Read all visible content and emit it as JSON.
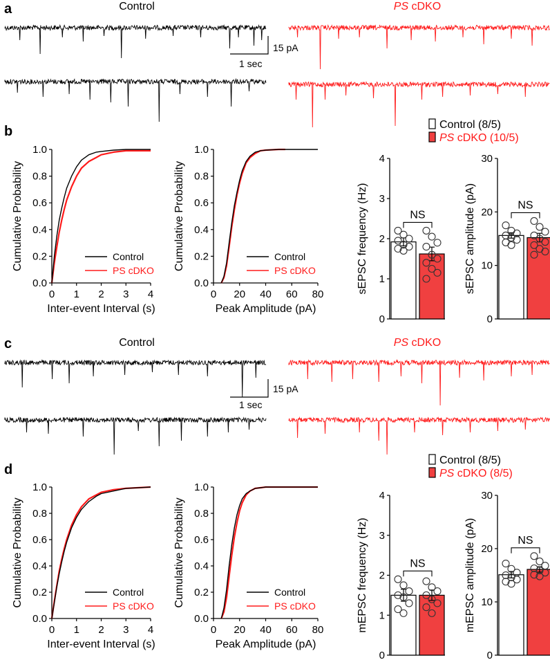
{
  "colors": {
    "control": "#000000",
    "cdko": "#ff1a1a",
    "bar_fill": "#f04040"
  },
  "panels": {
    "a": {
      "letter": "a",
      "control_label": "Control",
      "cdko_label_gene": "PS",
      "cdko_label_rest": " cDKO",
      "scale_current": "15 pA",
      "scale_time": "1 sec"
    },
    "b": {
      "letter": "b"
    },
    "c": {
      "letter": "c",
      "control_label": "Control",
      "cdko_label_gene": "PS",
      "cdko_label_rest": " cDKO",
      "scale_current": "15 pA",
      "scale_time": "1 sec"
    },
    "d": {
      "letter": "d"
    }
  },
  "bar_legends": {
    "b": {
      "control": "Control (8/5)",
      "cdko_gene": "PS",
      "cdko_rest": " cDKO (10/5)"
    },
    "d": {
      "control": "Control (8/5)",
      "cdko_gene": "PS",
      "cdko_rest": " cDKO (8/5)"
    }
  },
  "chart_data": [
    {
      "id": "b-iei",
      "type": "line",
      "xlabel": "Inter-event Interval (s)",
      "ylabel": "Cumulative Probability",
      "xlim": [
        0,
        4
      ],
      "ylim": [
        0,
        1
      ],
      "xticks": [
        "0",
        "1",
        "2",
        "3",
        "4"
      ],
      "yticks": [
        "0.0",
        "0.2",
        "0.4",
        "0.6",
        "0.8",
        "1.0"
      ],
      "legend": [
        "Control",
        "PS cDKO"
      ],
      "series": [
        {
          "name": "Control",
          "x": [
            0,
            0.1,
            0.2,
            0.3,
            0.4,
            0.5,
            0.6,
            0.8,
            1.0,
            1.2,
            1.5,
            1.8,
            2.0,
            2.5,
            3.0,
            4.0
          ],
          "y": [
            0,
            0.2,
            0.35,
            0.47,
            0.56,
            0.64,
            0.71,
            0.8,
            0.87,
            0.92,
            0.96,
            0.98,
            0.985,
            0.995,
            1.0,
            1.0
          ]
        },
        {
          "name": "PS cDKO",
          "x": [
            0,
            0.1,
            0.2,
            0.3,
            0.4,
            0.5,
            0.6,
            0.8,
            1.0,
            1.2,
            1.5,
            1.8,
            2.0,
            2.5,
            3.0,
            4.0
          ],
          "y": [
            0,
            0.15,
            0.27,
            0.38,
            0.47,
            0.55,
            0.62,
            0.72,
            0.8,
            0.86,
            0.91,
            0.94,
            0.96,
            0.98,
            0.99,
            0.99
          ]
        }
      ]
    },
    {
      "id": "b-amp",
      "type": "line",
      "xlabel": "Peak Amplitude (pA)",
      "ylabel": "Cumulative Probability",
      "xlim": [
        0,
        80
      ],
      "ylim": [
        0,
        1
      ],
      "xticks": [
        "0",
        "20",
        "40",
        "60",
        "80"
      ],
      "yticks": [
        "0.0",
        "0.2",
        "0.4",
        "0.6",
        "0.8",
        "1.0"
      ],
      "legend": [
        "Control",
        "PS cDKO"
      ],
      "series": [
        {
          "name": "Control",
          "x": [
            6,
            8,
            10,
            12,
            14,
            16,
            18,
            20,
            22,
            25,
            28,
            32,
            36,
            40,
            50,
            80
          ],
          "y": [
            0,
            0.05,
            0.15,
            0.3,
            0.45,
            0.58,
            0.68,
            0.77,
            0.84,
            0.91,
            0.95,
            0.98,
            0.99,
            0.995,
            1.0,
            1.0
          ]
        },
        {
          "name": "PS cDKO",
          "x": [
            6,
            8,
            10,
            12,
            14,
            16,
            18,
            20,
            22,
            25,
            28,
            32,
            36,
            40,
            50,
            55
          ],
          "y": [
            0,
            0.04,
            0.13,
            0.27,
            0.42,
            0.55,
            0.66,
            0.75,
            0.82,
            0.9,
            0.94,
            0.97,
            0.99,
            0.995,
            1.0,
            1.0
          ]
        }
      ]
    },
    {
      "id": "b-freq",
      "type": "bar",
      "ylabel": "sEPSC frequency (Hz)",
      "ylim": [
        0,
        4
      ],
      "yticks": [
        "0",
        "1",
        "2",
        "3",
        "4"
      ],
      "categories": [
        "Control",
        "PS cDKO"
      ],
      "values": [
        1.92,
        1.62
      ],
      "sem": [
        0.1,
        0.17
      ],
      "sig": "NS",
      "points": [
        [
          2.2,
          2.1,
          2.0,
          1.95,
          1.85,
          1.8,
          1.75,
          1.7
        ],
        [
          2.2,
          2.05,
          1.9,
          1.8,
          1.6,
          1.5,
          1.4,
          1.25,
          1.15,
          1.0
        ]
      ]
    },
    {
      "id": "b-ampbar",
      "type": "bar",
      "ylabel": "sEPSC amplitude (pA)",
      "ylim": [
        0,
        30
      ],
      "yticks": [
        "0",
        "10",
        "20",
        "30"
      ],
      "categories": [
        "Control",
        "PS cDKO"
      ],
      "values": [
        15.6,
        15.2
      ],
      "sem": [
        0.5,
        0.8
      ],
      "sig": "NS",
      "points": [
        [
          17.5,
          16.5,
          16.0,
          15.6,
          15.2,
          14.8,
          14.3,
          13.8
        ],
        [
          18.3,
          17.2,
          16.3,
          15.6,
          15.0,
          14.4,
          13.8,
          13.1,
          12.6,
          12.0
        ]
      ]
    },
    {
      "id": "d-iei",
      "type": "line",
      "xlabel": "Inter-event Interval (s)",
      "ylabel": "Cumulative Probability",
      "xlim": [
        0,
        4
      ],
      "ylim": [
        0,
        1
      ],
      "xticks": [
        "0",
        "1",
        "2",
        "3",
        "4"
      ],
      "yticks": [
        "0.0",
        "0.2",
        "0.4",
        "0.6",
        "0.8",
        "1.0"
      ],
      "legend": [
        "Control",
        "PS cDKO"
      ],
      "series": [
        {
          "name": "Control",
          "x": [
            0,
            0.1,
            0.2,
            0.3,
            0.4,
            0.5,
            0.6,
            0.8,
            1.0,
            1.2,
            1.5,
            1.8,
            2.0,
            2.5,
            3.0,
            4.0
          ],
          "y": [
            0,
            0.12,
            0.24,
            0.34,
            0.43,
            0.51,
            0.58,
            0.69,
            0.77,
            0.83,
            0.89,
            0.93,
            0.95,
            0.97,
            0.99,
            1.0
          ]
        },
        {
          "name": "PS cDKO",
          "x": [
            0,
            0.1,
            0.2,
            0.3,
            0.4,
            0.5,
            0.6,
            0.8,
            1.0,
            1.2,
            1.5,
            1.8,
            2.0,
            2.5,
            3.0,
            4.0
          ],
          "y": [
            0,
            0.13,
            0.25,
            0.36,
            0.45,
            0.53,
            0.6,
            0.71,
            0.79,
            0.85,
            0.91,
            0.94,
            0.96,
            0.98,
            0.99,
            1.0
          ]
        }
      ]
    },
    {
      "id": "d-amp",
      "type": "line",
      "xlabel": "Peak Amplitude (pA)",
      "ylabel": "Cumulative Probability",
      "xlim": [
        0,
        80
      ],
      "ylim": [
        0,
        1
      ],
      "xticks": [
        "0",
        "20",
        "40",
        "60",
        "80"
      ],
      "yticks": [
        "0.0",
        "0.2",
        "0.4",
        "0.6",
        "0.8",
        "1.0"
      ],
      "legend": [
        "Control",
        "PS cDKO"
      ],
      "series": [
        {
          "name": "Control",
          "x": [
            6,
            8,
            10,
            12,
            14,
            16,
            18,
            20,
            22,
            25,
            28,
            32,
            36,
            40,
            50,
            80
          ],
          "y": [
            0,
            0.08,
            0.22,
            0.4,
            0.56,
            0.69,
            0.79,
            0.86,
            0.91,
            0.95,
            0.97,
            0.99,
            0.995,
            1.0,
            1.0,
            1.0
          ]
        },
        {
          "name": "PS cDKO",
          "x": [
            6,
            8,
            10,
            12,
            14,
            16,
            18,
            20,
            22,
            25,
            28,
            32,
            36,
            40,
            50,
            80
          ],
          "y": [
            0,
            0.05,
            0.16,
            0.32,
            0.48,
            0.62,
            0.73,
            0.82,
            0.88,
            0.94,
            0.97,
            0.99,
            0.995,
            1.0,
            1.0,
            1.0
          ]
        }
      ]
    },
    {
      "id": "d-freq",
      "type": "bar",
      "ylabel": "mEPSC frequency (Hz)",
      "ylim": [
        0,
        4
      ],
      "yticks": [
        "0",
        "1",
        "2",
        "3",
        "4"
      ],
      "categories": [
        "Control",
        "PS cDKO"
      ],
      "values": [
        1.5,
        1.5
      ],
      "sem": [
        0.15,
        0.13
      ],
      "sig": "NS",
      "points": [
        [
          1.9,
          1.75,
          1.6,
          1.5,
          1.45,
          1.3,
          1.15,
          1.05
        ],
        [
          1.85,
          1.7,
          1.6,
          1.5,
          1.4,
          1.3,
          1.2,
          1.05
        ]
      ]
    },
    {
      "id": "d-ampbar",
      "type": "bar",
      "ylabel": "mEPSC amplitude (pA)",
      "ylim": [
        0,
        30
      ],
      "yticks": [
        "0",
        "10",
        "20",
        "30"
      ],
      "categories": [
        "Control",
        "PS cDKO"
      ],
      "values": [
        15.1,
        16.1
      ],
      "sem": [
        0.6,
        0.5
      ],
      "sig": "NS",
      "points": [
        [
          17.2,
          16.2,
          15.5,
          15.0,
          14.6,
          14.2,
          13.8,
          13.4
        ],
        [
          18.6,
          17.6,
          16.8,
          16.3,
          15.9,
          15.5,
          15.1,
          14.8
        ]
      ]
    }
  ]
}
